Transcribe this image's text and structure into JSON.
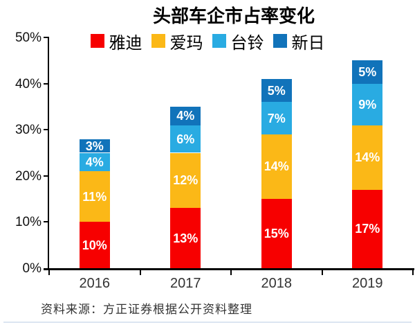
{
  "page": {
    "source_note": "资料来源：方正证券根据公开资料整理"
  },
  "chart_data": {
    "type": "bar",
    "stacked": true,
    "title": "头部车企市占率变化",
    "categories": [
      "2016",
      "2017",
      "2018",
      "2019"
    ],
    "series": [
      {
        "name": "雅迪",
        "color": "#F70000",
        "values": [
          10,
          13,
          15,
          17
        ]
      },
      {
        "name": "爱玛",
        "color": "#FBB817",
        "values": [
          11,
          12,
          14,
          14
        ]
      },
      {
        "name": "台铃",
        "color": "#29ABE2",
        "values": [
          4,
          6,
          7,
          9
        ]
      },
      {
        "name": "新日",
        "color": "#1173BA",
        "values": [
          3,
          4,
          5,
          5
        ]
      }
    ],
    "ylim": [
      0,
      50
    ],
    "ytick_step": 10,
    "ytick_labels": [
      "0%",
      "10%",
      "20%",
      "30%",
      "40%",
      "50%"
    ],
    "value_label_suffix": "%",
    "legend_position": "top",
    "grid": false,
    "axis_color": "#000000",
    "value_label_color": "#ffffff"
  }
}
